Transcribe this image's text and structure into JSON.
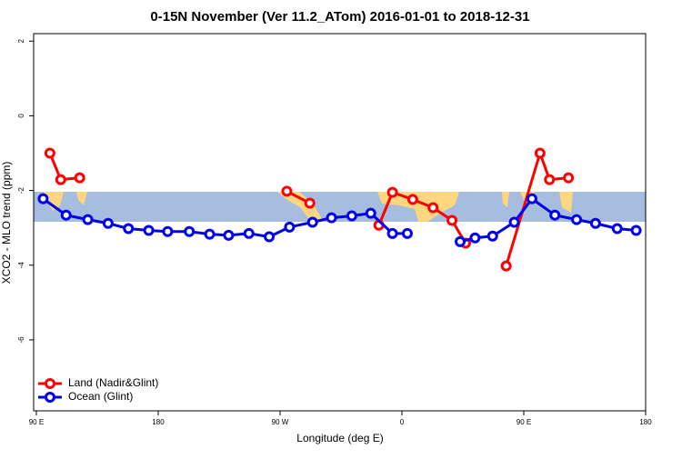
{
  "chart_data": {
    "type": "line",
    "title": "0-15N November (Ver 11.2_ATom)   2016-01-01 to 2018-12-31",
    "x_label": "Longitude (deg E)",
    "y_label": "XCO2 - MLO trend (ppm)",
    "xlim": [
      88,
      540
    ],
    "ylim": [
      -7.9,
      2.2
    ],
    "xticks": [
      {
        "value": 90,
        "label": "90 E"
      },
      180,
      {
        "value": 270,
        "label": "90 W"
      },
      {
        "value": 360,
        "label": "0"
      },
      {
        "value": 450,
        "label": "90 E"
      },
      {
        "value": 540,
        "label": "180"
      }
    ],
    "yticks": [
      2,
      0,
      -2,
      -4,
      -6
    ],
    "legend": "bottom-left",
    "series": [
      {
        "name": "Land (Nadir&Glint)",
        "color": "#ff0000",
        "x": [
          100,
          108,
          122,
          null,
          275,
          292,
          null,
          343,
          353,
          368,
          383,
          397,
          407,
          null,
          437,
          462,
          469,
          483
        ],
        "values": [
          -1.0,
          -1.71,
          -1.66,
          null,
          -2.02,
          -2.34,
          null,
          -2.93,
          -2.05,
          -2.24,
          -2.46,
          -2.8,
          -3.41,
          null,
          -4.02,
          -1.0,
          -1.71,
          -1.66
        ]
      },
      {
        "name": "Ocean (Glint)",
        "color": "#0000ee",
        "x": [
          95,
          112,
          128,
          143,
          158,
          173,
          187,
          203,
          218,
          232,
          247,
          262,
          277,
          294,
          308,
          323,
          337,
          353,
          364,
          null,
          403,
          414,
          427,
          443,
          456,
          473,
          489,
          503,
          519,
          533
        ],
        "values": [
          -2.22,
          -2.66,
          -2.78,
          -2.88,
          -3.02,
          -3.07,
          -3.1,
          -3.1,
          -3.17,
          -3.2,
          -3.15,
          -3.24,
          -2.98,
          -2.85,
          -2.73,
          -2.68,
          -2.61,
          -3.15,
          -3.15,
          null,
          -3.37,
          -3.27,
          -3.22,
          -2.85,
          -2.22,
          -2.66,
          -2.78,
          -2.88,
          -3.02,
          -3.07
        ]
      }
    ]
  }
}
